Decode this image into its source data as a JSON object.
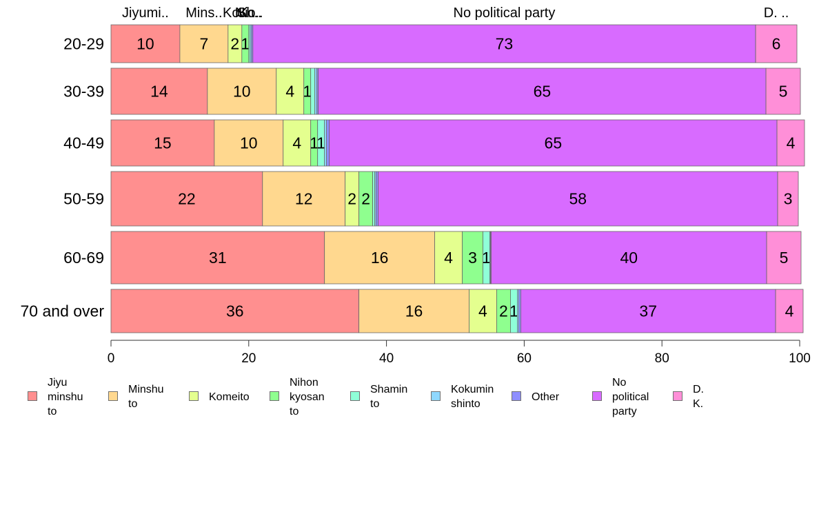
{
  "chart_data": {
    "type": "bar",
    "orientation": "horizontal",
    "stacked": true,
    "categories": [
      "20-29",
      "30-39",
      "40-49",
      "50-59",
      "60-69",
      "70 and over"
    ],
    "series": [
      {
        "name": "Jiyu minshu to",
        "color": "#ff8f8f",
        "values": [
          10,
          14,
          15,
          22,
          31,
          36
        ]
      },
      {
        "name": "Minshu to",
        "color": "#ffd88f",
        "values": [
          7,
          10,
          10,
          12,
          16,
          16
        ]
      },
      {
        "name": "Komeito",
        "color": "#e4ff8f",
        "values": [
          2,
          4,
          4,
          2,
          4,
          4
        ]
      },
      {
        "name": "Nihon kyosan to",
        "color": "#8fff8f",
        "values": [
          1,
          1,
          1,
          2,
          3,
          2
        ]
      },
      {
        "name": "Shamin to",
        "color": "#8fffd8",
        "values": [
          0.2,
          0.6,
          1,
          0.3,
          1,
          1
        ]
      },
      {
        "name": "Kokumin shinto",
        "color": "#8fd8ff",
        "values": [
          0.2,
          0.3,
          0.3,
          0.2,
          0.1,
          0.2
        ]
      },
      {
        "name": "Other",
        "color": "#8f8fff",
        "values": [
          0.2,
          0.2,
          0.4,
          0.3,
          0.1,
          0.3
        ]
      },
      {
        "name": "No political party",
        "color": "#d86bff",
        "values": [
          73,
          65,
          65,
          58,
          40,
          37
        ]
      },
      {
        "name": "D. K.",
        "color": "#ff8fd8",
        "values": [
          6,
          5,
          4,
          3,
          5,
          4
        ]
      }
    ],
    "data_labels": [
      [
        "10",
        "7",
        "2",
        "1",
        "",
        "",
        "",
        "73",
        "6"
      ],
      [
        "14",
        "10",
        "4",
        "1",
        "",
        "",
        "",
        "65",
        "5"
      ],
      [
        "15",
        "10",
        "4",
        "1",
        "1",
        "",
        "",
        "65",
        "4"
      ],
      [
        "22",
        "12",
        "2",
        "2",
        "",
        "",
        "",
        "58",
        "3"
      ],
      [
        "31",
        "16",
        "4",
        "3",
        "1",
        "",
        "",
        "40",
        "5"
      ],
      [
        "36",
        "16",
        "4",
        "2",
        "1",
        "",
        "",
        "37",
        "4"
      ]
    ],
    "top_labels": [
      "Jiyumi..",
      "Mins..",
      "Ko..",
      "Ni..",
      "Sh..",
      "Ko..",
      "",
      "No political party",
      "D. .."
    ],
    "xlim": [
      0,
      100
    ],
    "xticks": [
      0,
      20,
      40,
      60,
      80,
      100
    ],
    "title": "",
    "xlabel": "",
    "ylabel": "",
    "grid": false,
    "legend_position": "bottom"
  },
  "legend": [
    {
      "label": "Jiyu\nminshu\nto"
    },
    {
      "label": "Minshu\nto"
    },
    {
      "label": "Komeito"
    },
    {
      "label": "Nihon\nkyosan\nto"
    },
    {
      "label": "Shamin\nto"
    },
    {
      "label": "Kokumin\nshinto"
    },
    {
      "label": "Other"
    },
    {
      "label": "No\npolitical\nparty"
    },
    {
      "label": "D. K."
    }
  ]
}
